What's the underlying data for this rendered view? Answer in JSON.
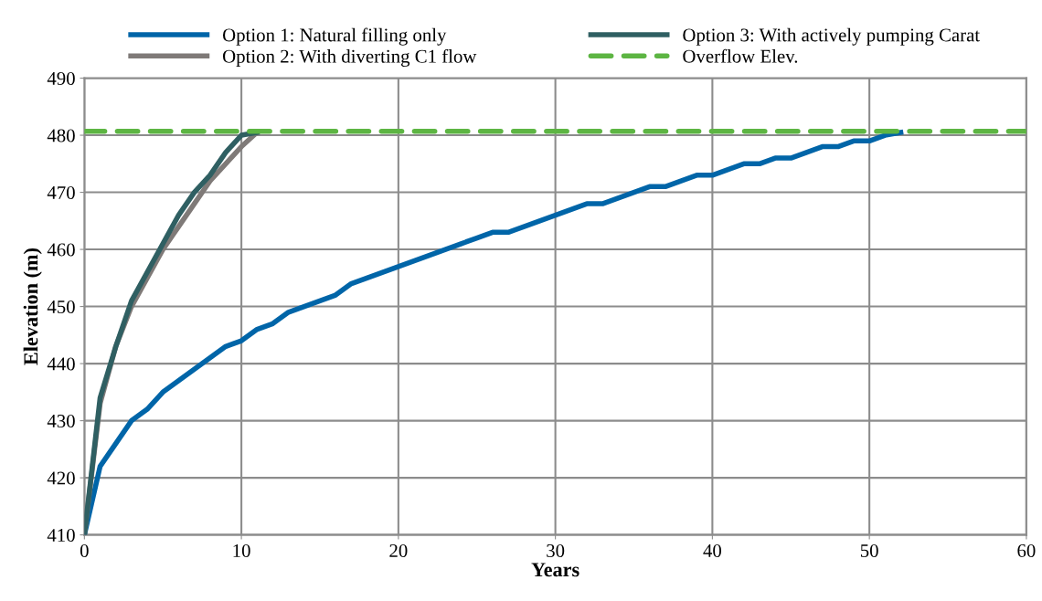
{
  "chart_data": {
    "type": "line",
    "xlabel": "Years",
    "ylabel": "Elevation (m)",
    "xlim": [
      0,
      60
    ],
    "xticks": [
      0,
      10,
      20,
      30,
      40,
      50,
      60
    ],
    "ylim": [
      410,
      490
    ],
    "yticks": [
      410,
      420,
      430,
      440,
      450,
      460,
      470,
      480,
      490
    ],
    "grid": true,
    "legend": "top",
    "marker": "none",
    "series": [
      {
        "name": "Option 1: Natural filling only",
        "color": "#0065a8",
        "line_style": "solid",
        "x": [
          0,
          1,
          2,
          3,
          4,
          5,
          6,
          7,
          8,
          9,
          10,
          11,
          12,
          13,
          14,
          15,
          16,
          17,
          18,
          19,
          20,
          21,
          22,
          23,
          24,
          25,
          26,
          27,
          28,
          29,
          30,
          31,
          32,
          33,
          34,
          35,
          36,
          37,
          38,
          39,
          40,
          41,
          42,
          43,
          44,
          45,
          46,
          47,
          48,
          49,
          50,
          51,
          52
        ],
        "values": [
          410,
          422,
          426,
          430,
          432,
          435,
          437,
          439,
          441,
          443,
          444,
          446,
          447,
          449,
          450,
          451,
          452,
          454,
          455,
          456,
          457,
          458,
          459,
          460,
          461,
          462,
          463,
          463,
          464,
          465,
          466,
          467,
          468,
          468,
          469,
          470,
          471,
          471,
          472,
          473,
          473,
          474,
          475,
          475,
          476,
          476,
          477,
          478,
          478,
          479,
          479,
          480,
          480.5
        ]
      },
      {
        "name": "Option 2: With diverting C1 flow",
        "color": "#7f7a78",
        "line_style": "solid",
        "x": [
          0,
          1,
          2,
          3,
          4,
          5,
          6,
          7,
          8,
          9,
          10,
          11
        ],
        "values": [
          410,
          433,
          443,
          450,
          455,
          460,
          464,
          468,
          472,
          475,
          478,
          480.5
        ]
      },
      {
        "name": "Option 3: With actively pumping Carat",
        "color": "#2f5f62",
        "line_style": "solid",
        "x": [
          0,
          1,
          2,
          3,
          4,
          5,
          6,
          7,
          8,
          9,
          10,
          11
        ],
        "values": [
          410,
          434,
          443,
          451,
          456,
          461,
          466,
          470,
          473,
          477,
          480,
          480.5
        ]
      },
      {
        "name": "Overflow Elev.",
        "color": "#5db543",
        "line_style": "dashed",
        "x": [
          0,
          60
        ],
        "values": [
          480.7,
          480.7
        ]
      }
    ]
  }
}
